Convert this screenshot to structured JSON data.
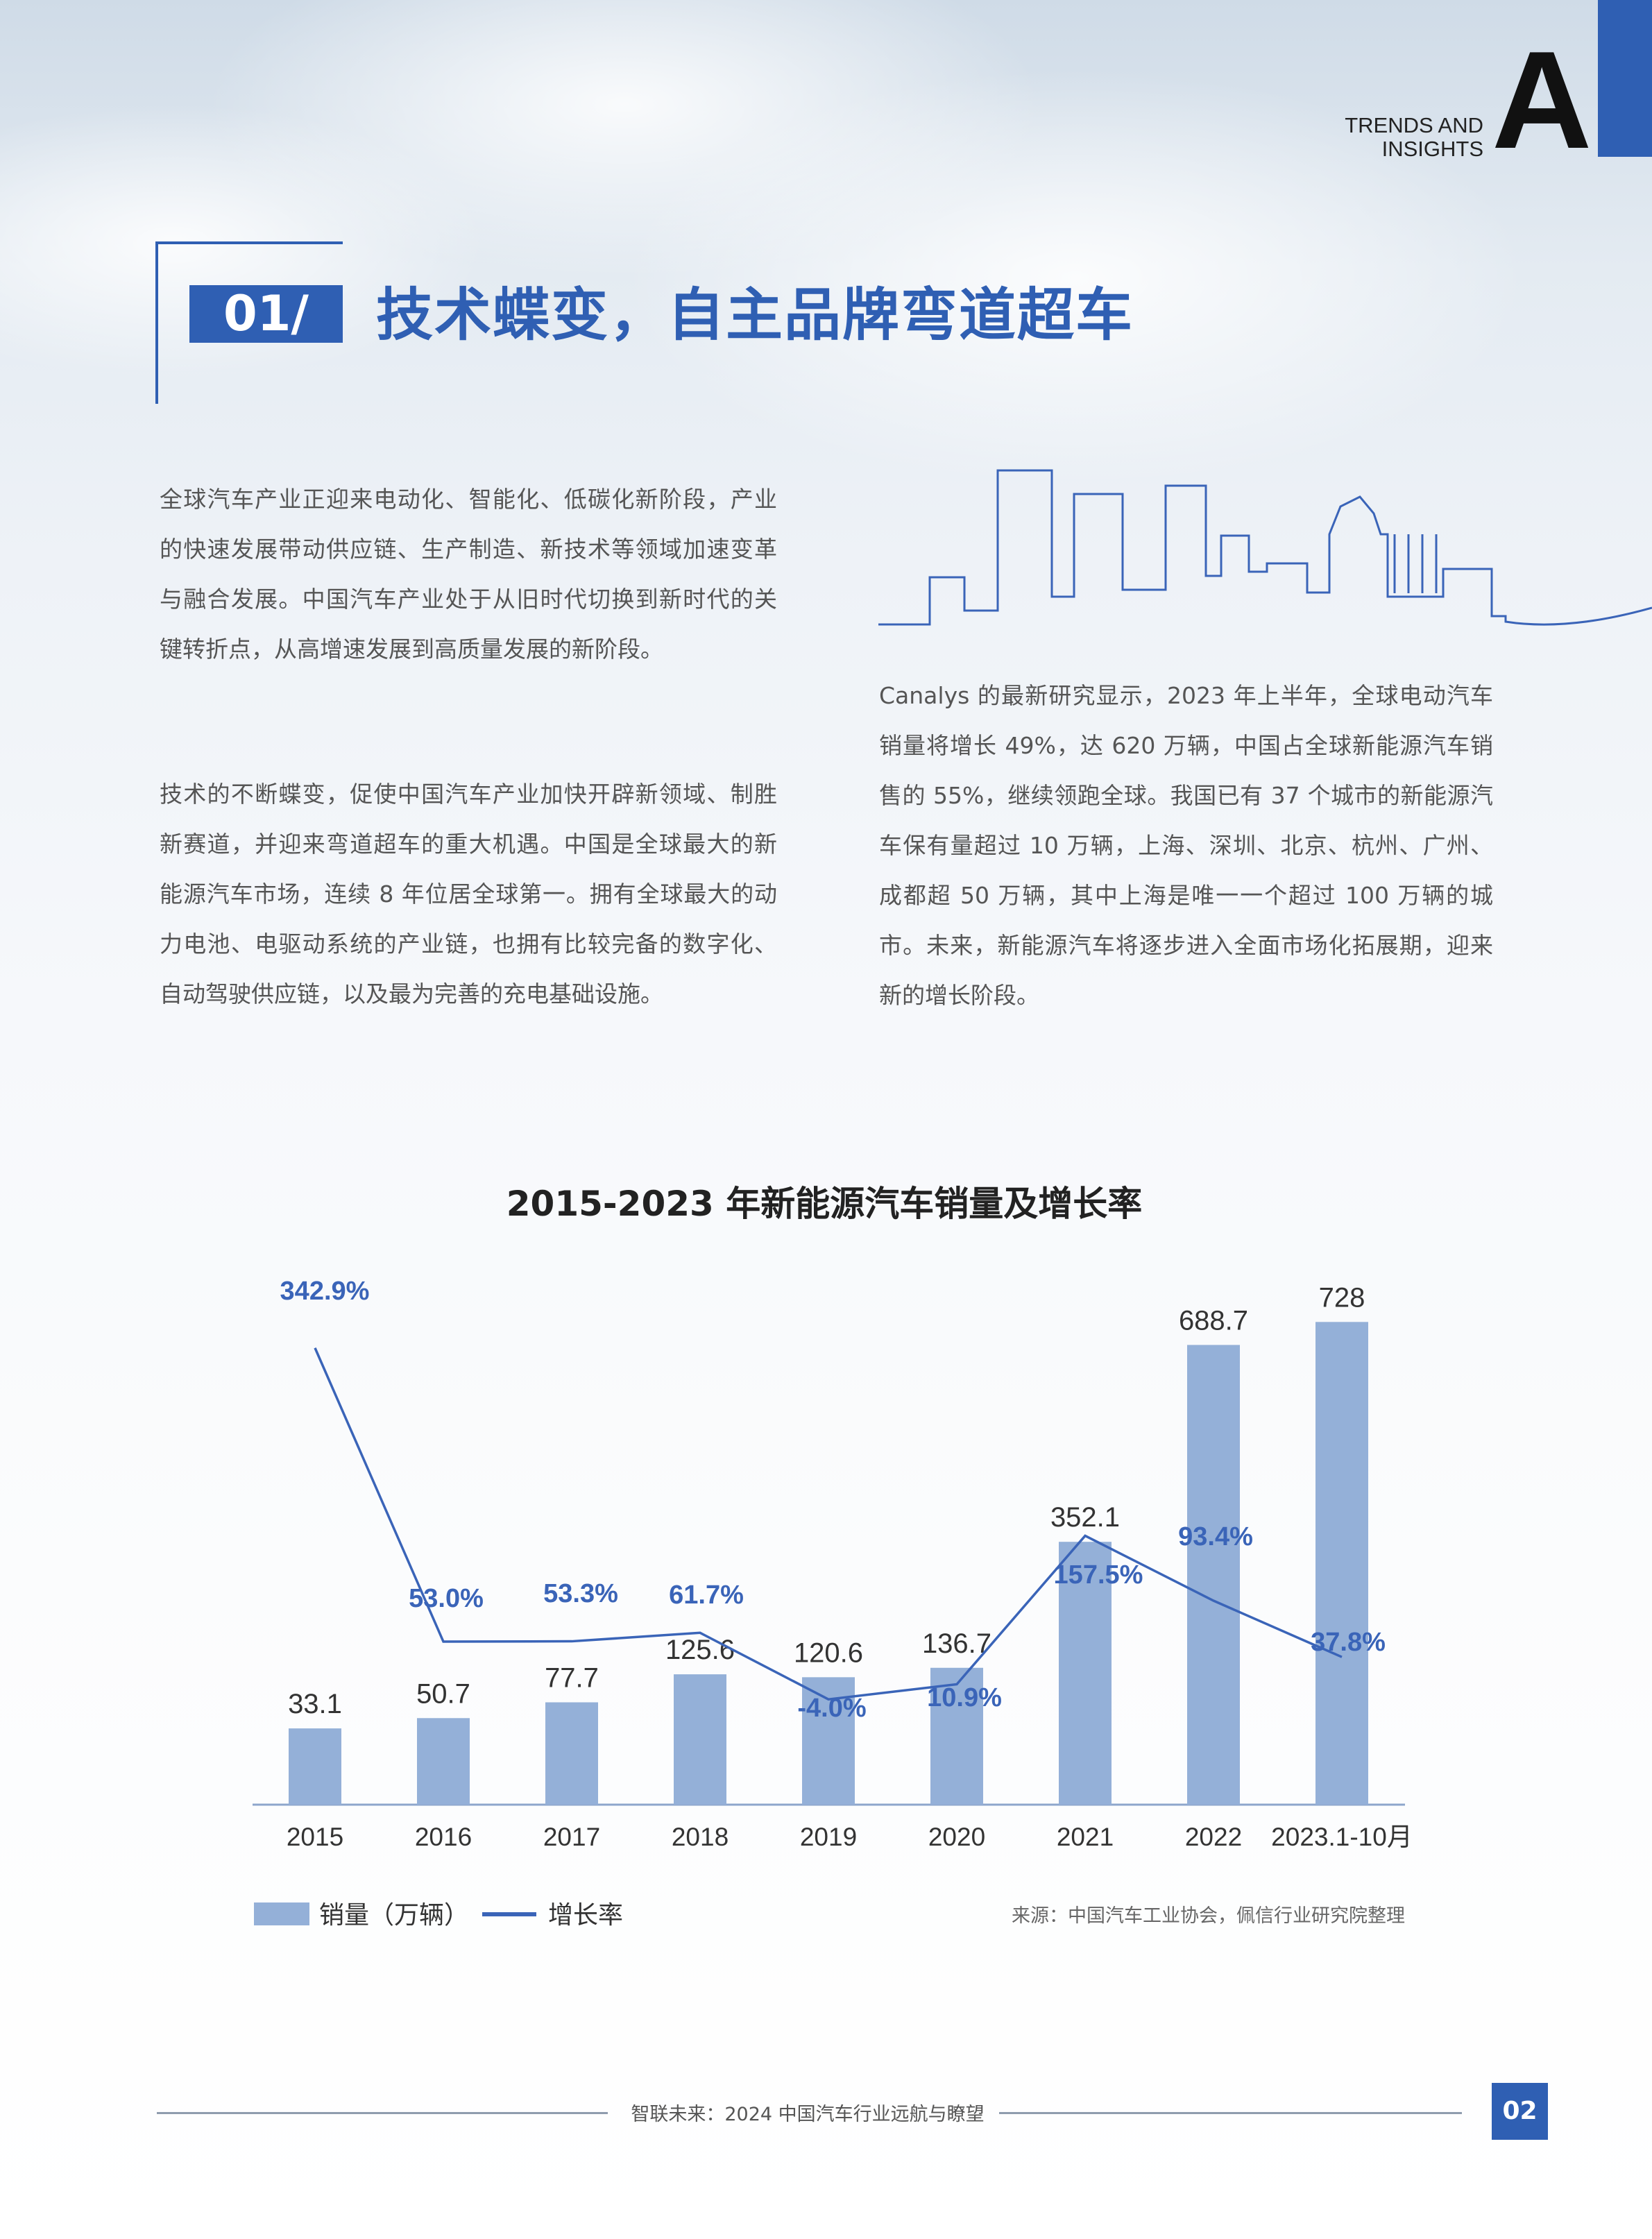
{
  "header": {
    "corner_letter": "A",
    "trends_line1": "TRENDS AND",
    "trends_line2": "INSIGHTS"
  },
  "section": {
    "number": "01/",
    "title": "技术蝶变，自主品牌弯道超车"
  },
  "left_paragraphs": [
    "全球汽车产业正迎来电动化、智能化、低碳化新阶段，产业的快速发展带动供应链、生产制造、新技术等领域加速变革与融合发展。中国汽车产业处于从旧时代切换到新时代的关键转折点，从高增速发展到高质量发展的新阶段。",
    "技术的不断蝶变，促使中国汽车产业加快开辟新领域、制胜新赛道，并迎来弯道超车的重大机遇。中国是全球最大的新能源汽车市场，连续 8 年位居全球第一。拥有全球最大的动力电池、电驱动系统的产业链，也拥有比较完备的数字化、自动驾驶供应链，以及最为完善的充电基础设施。"
  ],
  "right_paragraph": "Canalys 的最新研究显示，2023 年上半年，全球电动汽车销量将增长 49%，达 620 万辆，中国占全球新能源汽车销售的 55%，继续领跑全球。我国已有 37 个城市的新能源汽车保有量超过 10 万辆，上海、深圳、北京、杭州、广州、成都超 50 万辆，其中上海是唯一一个超过 100 万辆的城市。未来，新能源汽车将逐步进入全面市场化拓展期，迎来新的增长阶段。",
  "chart_data": {
    "type": "bar+line",
    "title": "2015-2023 年新能源汽车销量及增长率",
    "categories": [
      "2015",
      "2016",
      "2017",
      "2018",
      "2019",
      "2020",
      "2021",
      "2022",
      "2023.1-10月"
    ],
    "series": [
      {
        "name": "销量（万辆）",
        "type": "bar",
        "values": [
          33.1,
          50.7,
          77.7,
          125.6,
          120.6,
          136.7,
          352.1,
          688.7,
          728
        ],
        "labels": [
          "33.1",
          "50.7",
          "77.7",
          "125.6",
          "120.6",
          "136.7",
          "352.1",
          "688.7",
          "728"
        ],
        "color": "#94b0d8"
      },
      {
        "name": "增长率",
        "type": "line",
        "values": [
          342.9,
          53.0,
          53.3,
          61.7,
          -4.0,
          10.9,
          157.5,
          93.4,
          37.8
        ],
        "labels": [
          "342.9%",
          "53.0%",
          "53.3%",
          "61.7%",
          "-4.0%",
          "10.9%",
          "157.5%",
          "93.4%",
          "37.8%"
        ],
        "unit": "%",
        "color": "#3a64b8"
      }
    ],
    "grid": false,
    "legend": "bottom-left",
    "source": "来源：中国汽车工业协会，佩信行业研究院整理"
  },
  "footer": {
    "text": "智联未来：2024 中国汽车行业远航与瞭望",
    "page": "02"
  },
  "colors": {
    "accent": "#2f5fb3",
    "bar": "#94b0d8",
    "line": "#3a64b8"
  }
}
